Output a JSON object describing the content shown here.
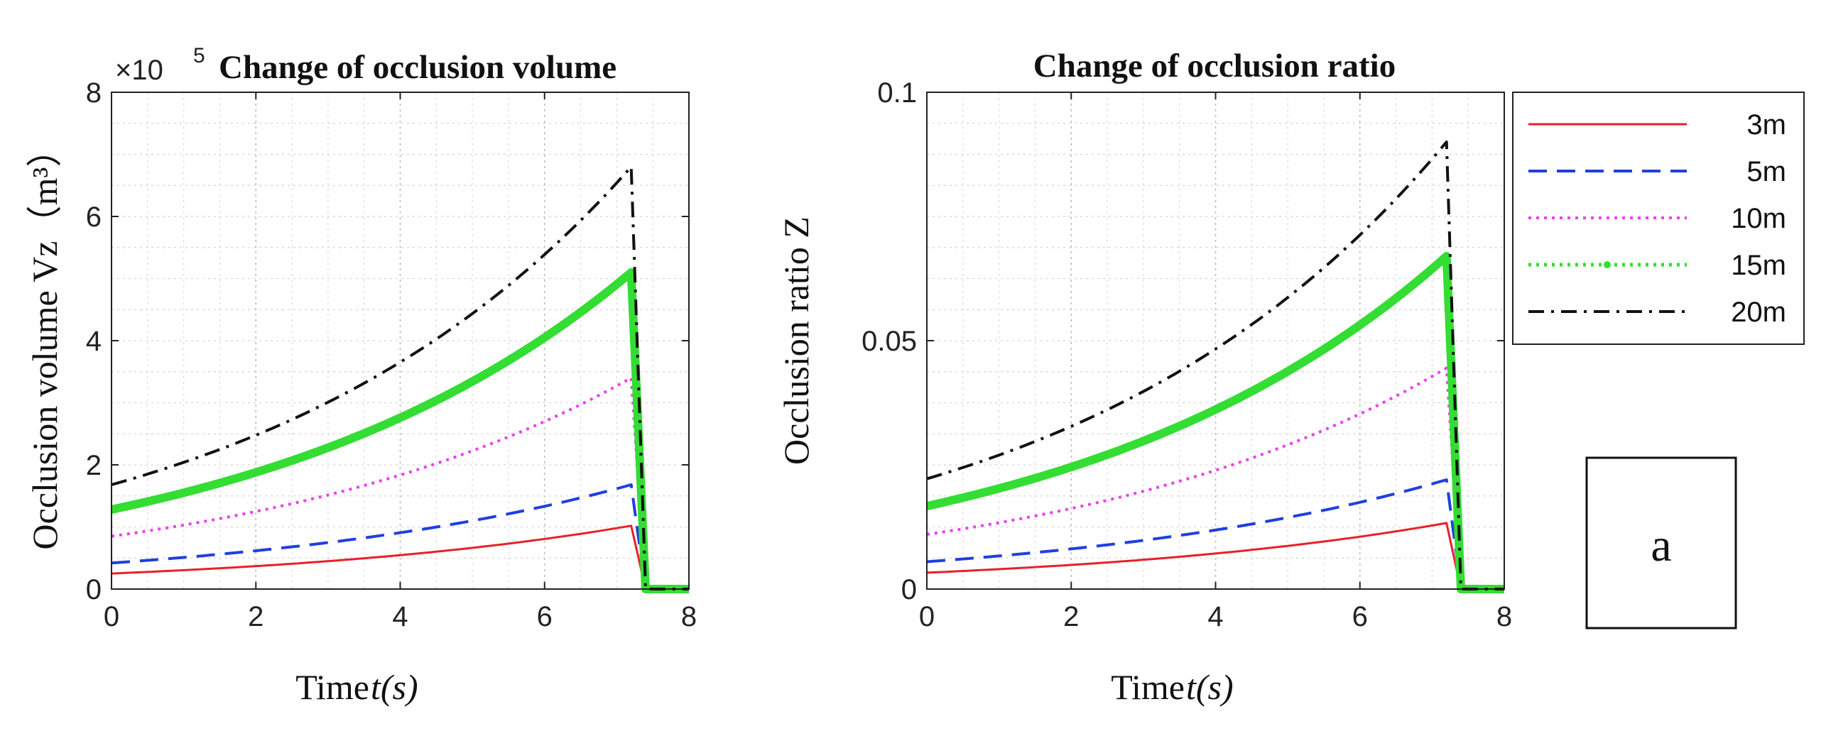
{
  "figure_label": "a",
  "legend": {
    "entries": [
      {
        "name": "3m",
        "color": "#e8202a",
        "style": "solid"
      },
      {
        "name": "5m",
        "color": "#1f3fe0",
        "style": "dashed"
      },
      {
        "name": "10m",
        "color": "#ee40ee",
        "style": "dotted"
      },
      {
        "name": "15m",
        "color": "#33dd33",
        "style": "dotted-marker"
      },
      {
        "name": "20m",
        "color": "#111111",
        "style": "dashdot"
      }
    ]
  },
  "chart_data": [
    {
      "type": "line",
      "title": "Change of occlusion volume",
      "exponent_prefix": "×10",
      "exponent": "5",
      "xlabel_prefix": "Time ",
      "xlabel_var": "t(s)",
      "ylabel": "Occlusion volume Vz（m³）",
      "xlim": [
        0,
        8
      ],
      "ylim": [
        0,
        8
      ],
      "xticks": [
        0,
        2,
        4,
        6,
        8
      ],
      "yticks": [
        0,
        2,
        4,
        6,
        8
      ],
      "ytick_labels": [
        "0",
        "2",
        "4",
        "6",
        "8"
      ],
      "grid": true,
      "series": [
        {
          "name": "3m",
          "start": 0.25,
          "peak": 1.02
        },
        {
          "name": "5m",
          "start": 0.42,
          "peak": 1.68
        },
        {
          "name": "10m",
          "start": 0.85,
          "peak": 3.4
        },
        {
          "name": "15m",
          "start": 1.28,
          "peak": 5.1
        },
        {
          "name": "20m",
          "start": 1.68,
          "peak": 6.8
        }
      ],
      "peak_time": 7.2,
      "drop_end_time": 7.4,
      "end_time": 8.0
    },
    {
      "type": "line",
      "title": "Change of occlusion ratio",
      "xlabel_prefix": "Time ",
      "xlabel_var": "t(s)",
      "ylabel": "Occlusion ratio Z",
      "xlim": [
        0,
        8
      ],
      "ylim": [
        0,
        0.1
      ],
      "xticks": [
        0,
        2,
        4,
        6,
        8
      ],
      "yticks": [
        0,
        0.05,
        0.1
      ],
      "ytick_labels": [
        "0",
        "0.05",
        "0.1"
      ],
      "grid": true,
      "series": [
        {
          "name": "3m",
          "start": 0.0033,
          "peak": 0.0133
        },
        {
          "name": "5m",
          "start": 0.0055,
          "peak": 0.022
        },
        {
          "name": "10m",
          "start": 0.011,
          "peak": 0.0445
        },
        {
          "name": "15m",
          "start": 0.0167,
          "peak": 0.067
        },
        {
          "name": "20m",
          "start": 0.0222,
          "peak": 0.09
        }
      ],
      "peak_time": 7.2,
      "drop_end_time": 7.4,
      "end_time": 8.0
    }
  ]
}
